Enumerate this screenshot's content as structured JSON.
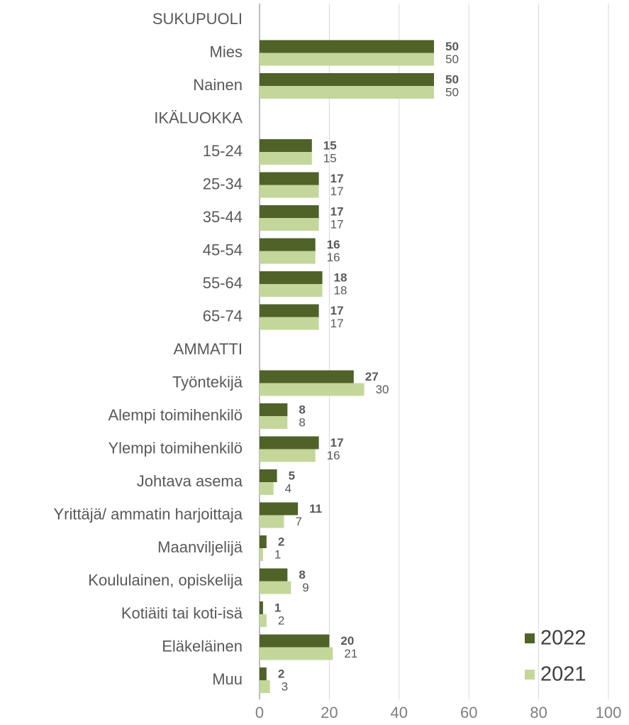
{
  "chart_data": {
    "type": "hbar",
    "categories": [
      "SUKUPUOLI",
      "Mies",
      "Nainen",
      "IKÄLUOKKA",
      "15-24",
      "25-34",
      "35-44",
      "45-54",
      "55-64",
      "65-74",
      "AMMATTI",
      "Työntekijä",
      "Alempi toimihenkilö",
      "Ylempi toimihenkilö",
      "Johtava asema",
      "Yrittäjä/ ammatin harjoittaja",
      "Maanviljelijä",
      "Koululainen, opiskelija",
      "Kotiäiti tai koti-isä",
      "Eläkeläinen",
      "Muu"
    ],
    "series": [
      {
        "name": "2022",
        "color": "#4f6228",
        "values": [
          null,
          50,
          50,
          null,
          15,
          17,
          17,
          16,
          18,
          17,
          null,
          27,
          8,
          17,
          5,
          11,
          2,
          8,
          1,
          20,
          2
        ]
      },
      {
        "name": "2021",
        "color": "#c4d79b",
        "values": [
          null,
          50,
          50,
          null,
          15,
          17,
          17,
          16,
          18,
          17,
          null,
          30,
          8,
          16,
          4,
          7,
          1,
          9,
          2,
          21,
          3
        ]
      }
    ],
    "xlim": [
      0,
      100
    ],
    "xticks": [
      0,
      20,
      40,
      60,
      80,
      100
    ],
    "grid": true,
    "legend": "lower right"
  }
}
